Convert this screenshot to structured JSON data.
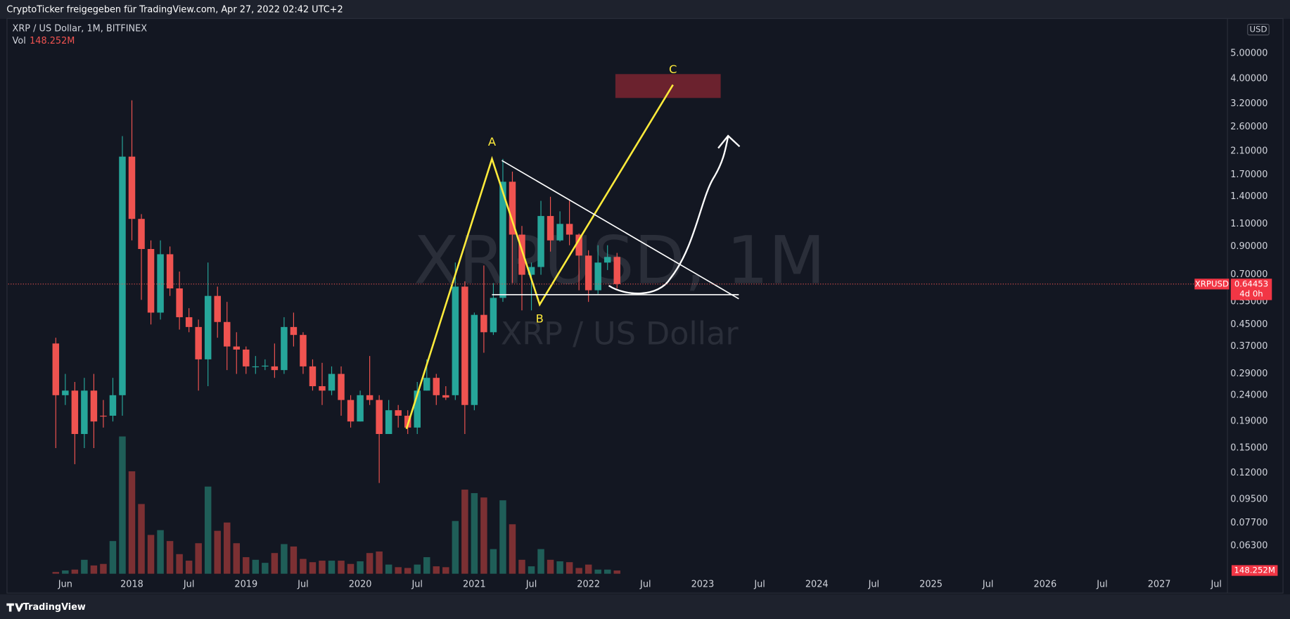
{
  "chart_data": {
    "type": "candlestick",
    "title": "CryptoTicker freigegeben für TradingView.com, Apr 27, 2022 02:42 UTC+2",
    "subtitle": "XRP / US Dollar, 1M, BITFINEX",
    "watermark": [
      "XRPUSD, 1M",
      "XRP / US Dollar"
    ],
    "symbol": "XRPUSD",
    "currency": "USD",
    "countdown": "4d 0h",
    "brand": "TradingView",
    "annotations": [
      "A",
      "B",
      "C"
    ],
    "log_scale": true,
    "up_color": "#26a69a",
    "down_color": "#ef5350",
    "x": [
      "2017-05",
      "2017-06",
      "2017-07",
      "2017-08",
      "2017-09",
      "2017-10",
      "2017-11",
      "2017-12",
      "2018-01",
      "2018-02",
      "2018-03",
      "2018-04",
      "2018-05",
      "2018-06",
      "2018-07",
      "2018-08",
      "2018-09",
      "2018-10",
      "2018-11",
      "2018-12",
      "2019-01",
      "2019-02",
      "2019-03",
      "2019-04",
      "2019-05",
      "2019-06",
      "2019-07",
      "2019-08",
      "2019-09",
      "2019-10",
      "2019-11",
      "2019-12",
      "2020-01",
      "2020-02",
      "2020-03",
      "2020-04",
      "2020-05",
      "2020-06",
      "2020-07",
      "2020-08",
      "2020-09",
      "2020-10",
      "2020-11",
      "2020-12",
      "2021-01",
      "2021-02",
      "2021-03",
      "2021-04",
      "2021-05",
      "2021-06",
      "2021-07",
      "2021-08",
      "2021-09",
      "2021-10",
      "2021-11",
      "2021-12",
      "2022-01",
      "2022-02",
      "2022-03",
      "2022-04"
    ],
    "open": [
      0.38,
      0.24,
      0.25,
      0.17,
      0.25,
      0.2,
      0.2,
      0.24,
      2.0,
      1.15,
      0.88,
      0.5,
      0.84,
      0.62,
      0.48,
      0.44,
      0.33,
      0.58,
      0.46,
      0.37,
      0.36,
      0.31,
      0.31,
      0.31,
      0.3,
      0.44,
      0.41,
      0.31,
      0.26,
      0.25,
      0.29,
      0.23,
      0.19,
      0.24,
      0.23,
      0.17,
      0.21,
      0.2,
      0.18,
      0.25,
      0.28,
      0.24,
      0.24,
      0.63,
      0.22,
      0.49,
      0.42,
      0.57,
      1.6,
      1.0,
      0.7,
      0.75,
      1.18,
      0.95,
      1.1,
      1.0,
      0.83,
      0.61,
      0.78,
      0.82
    ],
    "high": [
      0.4,
      0.29,
      0.27,
      0.28,
      0.29,
      0.23,
      0.28,
      2.4,
      3.3,
      1.2,
      0.95,
      0.95,
      0.9,
      0.72,
      0.52,
      0.47,
      0.78,
      0.63,
      0.55,
      0.42,
      0.37,
      0.34,
      0.33,
      0.38,
      0.48,
      0.5,
      0.42,
      0.33,
      0.32,
      0.31,
      0.31,
      0.24,
      0.25,
      0.34,
      0.24,
      0.23,
      0.22,
      0.21,
      0.27,
      0.33,
      0.29,
      0.26,
      0.78,
      0.66,
      0.5,
      0.76,
      0.65,
      1.96,
      1.75,
      1.08,
      0.78,
      1.35,
      1.4,
      1.23,
      1.35,
      1.01,
      0.87,
      0.91,
      0.91,
      0.85
    ],
    "low": [
      0.15,
      0.22,
      0.13,
      0.15,
      0.15,
      0.18,
      0.19,
      0.2,
      0.95,
      0.56,
      0.45,
      0.47,
      0.58,
      0.43,
      0.42,
      0.25,
      0.26,
      0.4,
      0.3,
      0.29,
      0.29,
      0.29,
      0.3,
      0.28,
      0.29,
      0.37,
      0.29,
      0.25,
      0.22,
      0.24,
      0.2,
      0.18,
      0.19,
      0.22,
      0.11,
      0.17,
      0.18,
      0.17,
      0.17,
      0.25,
      0.22,
      0.23,
      0.23,
      0.17,
      0.21,
      0.35,
      0.41,
      0.55,
      0.65,
      0.51,
      0.51,
      0.7,
      0.86,
      0.94,
      0.91,
      0.61,
      0.55,
      0.59,
      0.73,
      0.62
    ],
    "close": [
      0.24,
      0.25,
      0.17,
      0.25,
      0.19,
      0.199,
      0.24,
      2.0,
      1.15,
      0.88,
      0.5,
      0.84,
      0.62,
      0.48,
      0.44,
      0.33,
      0.58,
      0.46,
      0.37,
      0.36,
      0.31,
      0.31,
      0.312,
      0.3,
      0.44,
      0.41,
      0.31,
      0.26,
      0.25,
      0.29,
      0.23,
      0.19,
      0.24,
      0.23,
      0.17,
      0.21,
      0.2,
      0.18,
      0.25,
      0.28,
      0.24,
      0.235,
      0.63,
      0.22,
      0.49,
      0.42,
      0.57,
      1.6,
      1.0,
      0.7,
      0.75,
      1.18,
      0.95,
      1.1,
      1.0,
      0.83,
      0.61,
      0.78,
      0.82,
      0.64453
    ],
    "volume": {
      "name": "Vol",
      "values": [
        80,
        150,
        190,
        640,
        380,
        450,
        1500,
        6300,
        4700,
        3200,
        1780,
        2000,
        1500,
        900,
        600,
        1400,
        4000,
        1970,
        2350,
        1400,
        760,
        640,
        500,
        950,
        1360,
        1250,
        680,
        530,
        600,
        600,
        600,
        450,
        570,
        950,
        1020,
        420,
        300,
        265,
        420,
        760,
        340,
        300,
        2420,
        3860,
        3700,
        3500,
        1130,
        3370,
        2270,
        640,
        340,
        1130,
        640,
        570,
        530,
        265,
        420,
        190,
        190,
        148.252
      ],
      "last_label": "148.252M",
      "up_color": "#1f5e58",
      "down_color": "#7c3033",
      "lim": [
        0,
        25500
      ]
    },
    "ylim": [
      0.0415,
      6.85
    ],
    "yticks": [
      {
        "value": 5,
        "label": "5.00000"
      },
      {
        "value": 4,
        "label": "4.00000"
      },
      {
        "value": 3.2,
        "label": "3.20000"
      },
      {
        "value": 2.6,
        "label": "2.60000"
      },
      {
        "value": 2.1,
        "label": "2.10000"
      },
      {
        "value": 1.7,
        "label": "1.70000"
      },
      {
        "value": 1.4,
        "label": "1.40000"
      },
      {
        "value": 1.1,
        "label": "1.10000"
      },
      {
        "value": 0.9,
        "label": "0.90000"
      },
      {
        "value": 0.7,
        "label": "0.70000"
      },
      {
        "value": 0.55,
        "label": "0.55000"
      },
      {
        "value": 0.45,
        "label": "0.45000"
      },
      {
        "value": 0.37,
        "label": "0.37000"
      },
      {
        "value": 0.29,
        "label": "0.29000"
      },
      {
        "value": 0.24,
        "label": "0.24000"
      },
      {
        "value": 0.19,
        "label": "0.19000"
      },
      {
        "value": 0.15,
        "label": "0.15000"
      },
      {
        "value": 0.12,
        "label": "0.12000"
      },
      {
        "value": 0.095,
        "label": "0.09500"
      },
      {
        "value": 0.077,
        "label": "0.07700"
      },
      {
        "value": 0.063,
        "label": "0.06300"
      }
    ],
    "xlim": [
      "2016-12",
      "2027-08"
    ],
    "xticks": [
      {
        "value": "2017-06",
        "label": "Jun"
      },
      {
        "value": "2018-01",
        "label": "2018"
      },
      {
        "value": "2018-07",
        "label": "Jul"
      },
      {
        "value": "2019-01",
        "label": "2019"
      },
      {
        "value": "2019-07",
        "label": "Jul"
      },
      {
        "value": "2020-01",
        "label": "2020"
      },
      {
        "value": "2020-07",
        "label": "Jul"
      },
      {
        "value": "2021-01",
        "label": "2021"
      },
      {
        "value": "2021-07",
        "label": "Jul"
      },
      {
        "value": "2022-01",
        "label": "2022"
      },
      {
        "value": "2022-07",
        "label": "Jul"
      },
      {
        "value": "2023-01",
        "label": "2023"
      },
      {
        "value": "2023-07",
        "label": "Jul"
      },
      {
        "value": "2024-01",
        "label": "2024"
      },
      {
        "value": "2024-07",
        "label": "Jul"
      },
      {
        "value": "2025-01",
        "label": "2025"
      },
      {
        "value": "2025-07",
        "label": "Jul"
      },
      {
        "value": "2026-01",
        "label": "2026"
      },
      {
        "value": "2026-07",
        "label": "Jul"
      },
      {
        "value": "2027-01",
        "label": "2027"
      },
      {
        "value": "2027-07",
        "label": "Jul"
      }
    ]
  }
}
